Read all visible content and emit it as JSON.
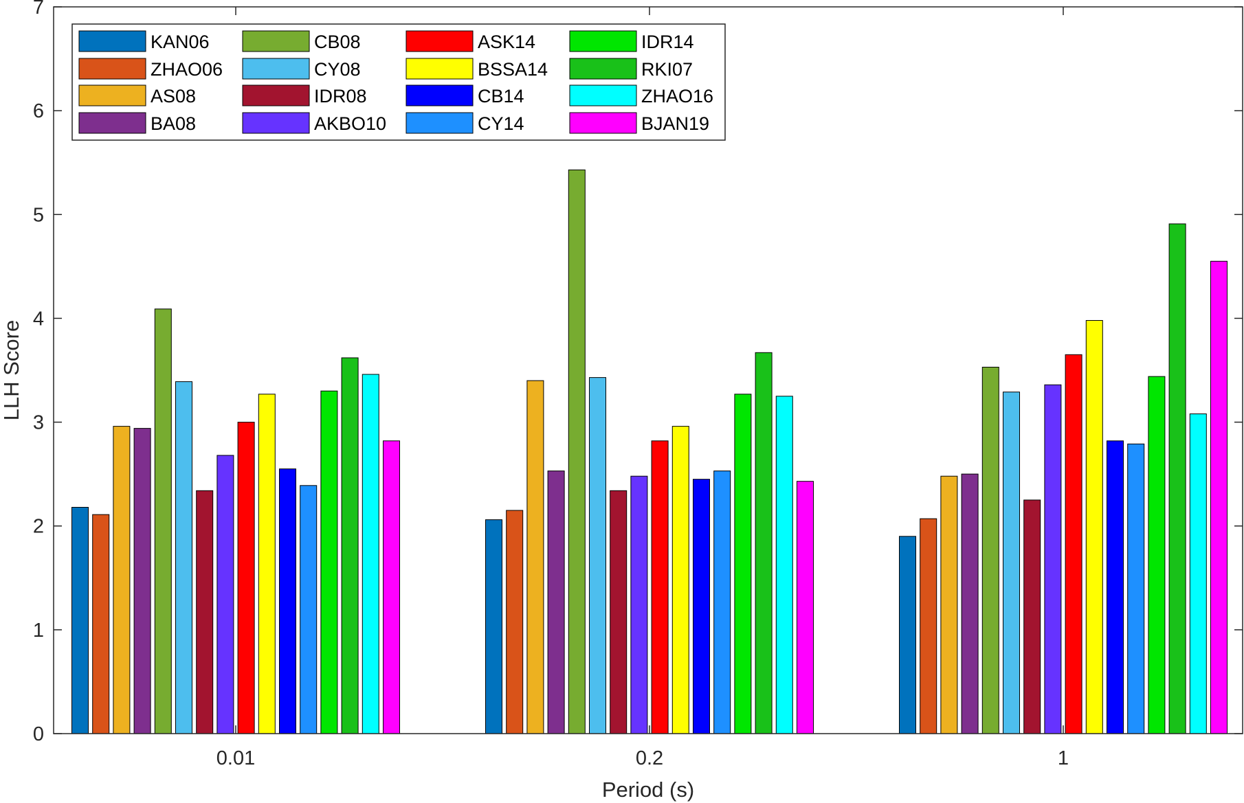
{
  "chart_data": {
    "type": "bar",
    "title": "",
    "xlabel": "Period (s)",
    "ylabel": "LLH Score",
    "categories": [
      "0.01",
      "0.2",
      "1"
    ],
    "ylim": [
      0,
      7
    ],
    "yticks": [
      "0",
      "1",
      "2",
      "3",
      "4",
      "5",
      "6",
      "7"
    ],
    "grid": false,
    "legend_position": "top-left",
    "series": [
      {
        "name": "KAN06",
        "color": "#0072BD",
        "values": [
          2.18,
          2.06,
          1.9
        ]
      },
      {
        "name": "ZHAO06",
        "color": "#D95319",
        "values": [
          2.11,
          2.15,
          2.07
        ]
      },
      {
        "name": "AS08",
        "color": "#EDB120",
        "values": [
          2.96,
          3.4,
          2.48
        ]
      },
      {
        "name": "BA08",
        "color": "#7E2F8E",
        "values": [
          2.94,
          2.53,
          2.5
        ]
      },
      {
        "name": "CB08",
        "color": "#77AC30",
        "values": [
          4.09,
          5.43,
          3.53
        ]
      },
      {
        "name": "CY08",
        "color": "#4DBEEE",
        "values": [
          3.39,
          3.43,
          3.29
        ]
      },
      {
        "name": "IDR08",
        "color": "#A2142F",
        "values": [
          2.34,
          2.34,
          2.25
        ]
      },
      {
        "name": "AKBO10",
        "color": "#6633FF",
        "values": [
          2.68,
          2.48,
          3.36
        ]
      },
      {
        "name": "ASK14",
        "color": "#FF0000",
        "values": [
          3.0,
          2.82,
          3.65
        ]
      },
      {
        "name": "BSSA14",
        "color": "#FFFF00",
        "values": [
          3.27,
          2.96,
          3.98
        ]
      },
      {
        "name": "CB14",
        "color": "#0000FF",
        "values": [
          2.55,
          2.45,
          2.82
        ]
      },
      {
        "name": "CY14",
        "color": "#1E90FF",
        "values": [
          2.39,
          2.53,
          2.79
        ]
      },
      {
        "name": "IDR14",
        "color": "#00E600",
        "values": [
          3.3,
          3.27,
          3.44
        ]
      },
      {
        "name": "RKI07",
        "color": "#19C119",
        "values": [
          3.62,
          3.67,
          4.91
        ]
      },
      {
        "name": "ZHAO16",
        "color": "#00FFFF",
        "values": [
          3.46,
          3.25,
          3.08
        ]
      },
      {
        "name": "BJAN19",
        "color": "#FF00FF",
        "values": [
          2.82,
          2.43,
          4.55
        ]
      }
    ]
  }
}
